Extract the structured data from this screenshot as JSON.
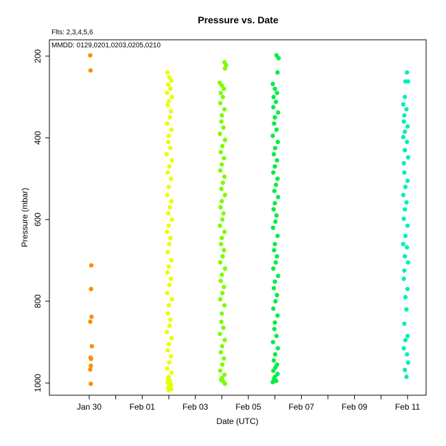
{
  "chart_data": {
    "type": "scatter",
    "title": "Pressure  vs. Date",
    "subtitle_fits": "Flts: 2,3,4,5,6",
    "subtitle_mmdd": "MMDD: 0129,0201,0203,0205,0210",
    "xlabel": "Date (UTC)",
    "ylabel": "Pressure (mbar)",
    "x_unit": "days",
    "x_ticks": [
      {
        "value": 0,
        "label": "Jan 30"
      },
      {
        "value": 2,
        "label": "Feb 01"
      },
      {
        "value": 4,
        "label": "Feb 03"
      },
      {
        "value": 6,
        "label": "Feb 05"
      },
      {
        "value": 8,
        "label": "Feb 07"
      },
      {
        "value": 10,
        "label": "Feb 09"
      },
      {
        "value": 12,
        "label": "Feb 11"
      }
    ],
    "x_minor_ticks": [
      1,
      3,
      5,
      7,
      9,
      11
    ],
    "y_ticks": [
      200,
      400,
      600,
      800,
      1000
    ],
    "xlim": [
      -1.5,
      12.7
    ],
    "ylim": [
      1030,
      160
    ],
    "y_inverted": true,
    "grid": false,
    "series": [
      {
        "color": "#ff8c00",
        "points": [
          [
            0.04,
            198
          ],
          [
            0.05,
            235
          ],
          [
            0.08,
            712
          ],
          [
            0.07,
            770
          ],
          [
            0.09,
            838
          ],
          [
            0.04,
            850
          ],
          [
            0.1,
            910
          ],
          [
            0.05,
            938
          ],
          [
            0.07,
            941
          ],
          [
            0.06,
            958
          ],
          [
            0.04,
            967
          ],
          [
            0.06,
            1002
          ]
        ]
      },
      {
        "color": "#e6ff00",
        "points": [
          [
            2.95,
            240
          ],
          [
            3.02,
            252
          ],
          [
            3.1,
            260
          ],
          [
            2.98,
            270
          ],
          [
            3.06,
            280
          ],
          [
            2.93,
            290
          ],
          [
            3.12,
            300
          ],
          [
            3.0,
            310
          ],
          [
            2.96,
            320
          ],
          [
            3.08,
            335
          ],
          [
            3.04,
            350
          ],
          [
            2.94,
            365
          ],
          [
            3.1,
            380
          ],
          [
            3.0,
            395
          ],
          [
            2.98,
            410
          ],
          [
            3.06,
            425
          ],
          [
            2.92,
            440
          ],
          [
            3.12,
            455
          ],
          [
            3.02,
            470
          ],
          [
            2.96,
            485
          ],
          [
            3.08,
            500
          ],
          [
            3.0,
            520
          ],
          [
            2.94,
            540
          ],
          [
            3.1,
            555
          ],
          [
            3.04,
            570
          ],
          [
            2.98,
            585
          ],
          [
            3.12,
            600
          ],
          [
            3.0,
            615
          ],
          [
            2.93,
            630
          ],
          [
            3.06,
            645
          ],
          [
            3.02,
            660
          ],
          [
            2.96,
            680
          ],
          [
            3.1,
            700
          ],
          [
            3.0,
            715
          ],
          [
            2.95,
            730
          ],
          [
            3.08,
            745
          ],
          [
            3.02,
            760
          ],
          [
            2.94,
            780
          ],
          [
            3.12,
            795
          ],
          [
            3.0,
            810
          ],
          [
            2.97,
            830
          ],
          [
            3.06,
            845
          ],
          [
            3.03,
            860
          ],
          [
            2.93,
            875
          ],
          [
            3.11,
            890
          ],
          [
            3.0,
            905
          ],
          [
            2.96,
            920
          ],
          [
            3.08,
            935
          ],
          [
            3.02,
            950
          ],
          [
            2.94,
            965
          ],
          [
            3.1,
            975
          ],
          [
            3.0,
            985
          ],
          [
            2.98,
            990
          ],
          [
            3.05,
            995
          ],
          [
            2.95,
            1000
          ],
          [
            3.08,
            1005
          ],
          [
            3.02,
            1008
          ],
          [
            2.97,
            1012
          ],
          [
            3.1,
            1015
          ],
          [
            3.0,
            1018
          ]
        ]
      },
      {
        "color": "#7cfc00",
        "points": [
          [
            5.1,
            215
          ],
          [
            5.16,
            222
          ],
          [
            5.12,
            230
          ],
          [
            4.92,
            265
          ],
          [
            5.0,
            272
          ],
          [
            5.08,
            280
          ],
          [
            4.96,
            290
          ],
          [
            5.04,
            300
          ],
          [
            4.94,
            315
          ],
          [
            5.1,
            330
          ],
          [
            5.0,
            345
          ],
          [
            4.98,
            360
          ],
          [
            5.06,
            375
          ],
          [
            4.93,
            390
          ],
          [
            5.12,
            405
          ],
          [
            5.02,
            420
          ],
          [
            4.96,
            435
          ],
          [
            5.08,
            450
          ],
          [
            5.0,
            465
          ],
          [
            4.94,
            480
          ],
          [
            5.1,
            495
          ],
          [
            5.04,
            510
          ],
          [
            4.98,
            525
          ],
          [
            5.12,
            540
          ],
          [
            5.0,
            555
          ],
          [
            4.95,
            570
          ],
          [
            5.06,
            585
          ],
          [
            5.02,
            600
          ],
          [
            4.93,
            615
          ],
          [
            5.1,
            630
          ],
          [
            5.0,
            645
          ],
          [
            4.97,
            660
          ],
          [
            5.08,
            675
          ],
          [
            5.03,
            690
          ],
          [
            4.94,
            705
          ],
          [
            5.12,
            720
          ],
          [
            5.0,
            735
          ],
          [
            4.96,
            750
          ],
          [
            5.08,
            765
          ],
          [
            5.02,
            780
          ],
          [
            4.94,
            795
          ],
          [
            5.1,
            810
          ],
          [
            5.0,
            830
          ],
          [
            4.98,
            850
          ],
          [
            5.06,
            865
          ],
          [
            4.93,
            880
          ],
          [
            5.11,
            895
          ],
          [
            5.01,
            910
          ],
          [
            4.96,
            925
          ],
          [
            5.08,
            940
          ],
          [
            5.02,
            955
          ],
          [
            4.94,
            970
          ],
          [
            5.1,
            980
          ],
          [
            5.0,
            988
          ],
          [
            4.97,
            992
          ],
          [
            5.05,
            996
          ],
          [
            5.12,
            1002
          ]
        ]
      },
      {
        "color": "#00ee44",
        "points": [
          [
            7.06,
            198
          ],
          [
            7.14,
            205
          ],
          [
            7.1,
            240
          ],
          [
            6.92,
            268
          ],
          [
            7.0,
            280
          ],
          [
            7.08,
            290
          ],
          [
            6.95,
            300
          ],
          [
            7.04,
            312
          ],
          [
            6.94,
            325
          ],
          [
            7.12,
            338
          ],
          [
            7.0,
            350
          ],
          [
            6.97,
            365
          ],
          [
            7.06,
            380
          ],
          [
            6.92,
            395
          ],
          [
            7.11,
            410
          ],
          [
            7.01,
            425
          ],
          [
            6.96,
            440
          ],
          [
            7.08,
            455
          ],
          [
            7.0,
            470
          ],
          [
            6.94,
            485
          ],
          [
            7.1,
            500
          ],
          [
            7.04,
            515
          ],
          [
            6.98,
            530
          ],
          [
            7.12,
            545
          ],
          [
            7.0,
            560
          ],
          [
            6.95,
            575
          ],
          [
            7.06,
            590
          ],
          [
            7.02,
            605
          ],
          [
            6.93,
            620
          ],
          [
            7.1,
            640
          ],
          [
            7.0,
            660
          ],
          [
            6.97,
            675
          ],
          [
            7.08,
            690
          ],
          [
            7.03,
            705
          ],
          [
            6.94,
            720
          ],
          [
            7.12,
            738
          ],
          [
            7.0,
            752
          ],
          [
            6.96,
            768
          ],
          [
            7.08,
            785
          ],
          [
            7.02,
            800
          ],
          [
            6.94,
            818
          ],
          [
            7.1,
            835
          ],
          [
            7.0,
            852
          ],
          [
            6.98,
            868
          ],
          [
            7.06,
            885
          ],
          [
            6.93,
            900
          ],
          [
            7.11,
            915
          ],
          [
            7.01,
            930
          ],
          [
            6.96,
            945
          ],
          [
            7.08,
            955
          ],
          [
            7.02,
            962
          ],
          [
            6.94,
            970
          ],
          [
            7.1,
            978
          ],
          [
            7.0,
            985
          ],
          [
            6.97,
            990
          ],
          [
            7.05,
            995
          ],
          [
            6.92,
            998
          ]
        ]
      },
      {
        "color": "#00eebb",
        "points": [
          [
            11.98,
            240
          ],
          [
            11.92,
            262
          ],
          [
            12.02,
            262
          ],
          [
            11.9,
            300
          ],
          [
            11.84,
            318
          ],
          [
            11.96,
            330
          ],
          [
            11.88,
            345
          ],
          [
            11.86,
            360
          ],
          [
            12.0,
            372
          ],
          [
            11.9,
            385
          ],
          [
            11.84,
            398
          ],
          [
            11.98,
            410
          ],
          [
            11.9,
            430
          ],
          [
            12.02,
            448
          ],
          [
            11.86,
            462
          ],
          [
            11.88,
            485
          ],
          [
            12.0,
            505
          ],
          [
            11.92,
            520
          ],
          [
            11.84,
            540
          ],
          [
            11.96,
            558
          ],
          [
            11.9,
            575
          ],
          [
            11.86,
            598
          ],
          [
            12.0,
            615
          ],
          [
            11.92,
            640
          ],
          [
            11.84,
            660
          ],
          [
            11.98,
            668
          ],
          [
            11.9,
            690
          ],
          [
            12.02,
            705
          ],
          [
            11.88,
            725
          ],
          [
            11.86,
            745
          ],
          [
            12.0,
            770
          ],
          [
            11.92,
            790
          ],
          [
            11.96,
            820
          ],
          [
            11.88,
            855
          ],
          [
            12.0,
            885
          ],
          [
            11.92,
            895
          ],
          [
            11.86,
            915
          ],
          [
            11.98,
            930
          ],
          [
            12.02,
            950
          ],
          [
            11.9,
            968
          ],
          [
            11.96,
            985
          ]
        ]
      }
    ]
  }
}
